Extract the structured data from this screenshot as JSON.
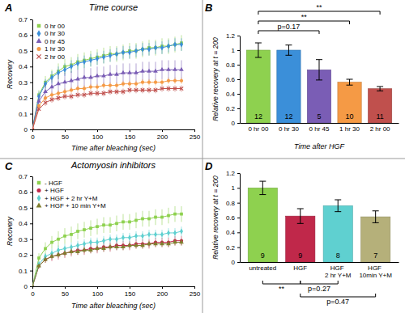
{
  "chart_data": [
    {
      "panel_label": "A",
      "type": "line",
      "title": "Time course",
      "xlabel": "Time after bleaching (sec)",
      "ylabel": "Recovery",
      "x": [
        0,
        10,
        20,
        30,
        40,
        50,
        60,
        70,
        80,
        90,
        100,
        110,
        120,
        130,
        140,
        150,
        160,
        170,
        180,
        190,
        200,
        210,
        220,
        230
      ],
      "xlim": [
        0,
        250
      ],
      "xticks": [
        0,
        50,
        100,
        150,
        200,
        250
      ],
      "ylim": [
        0,
        0.7
      ],
      "yticks": [
        0,
        0.1,
        0.2,
        0.3,
        0.4,
        0.5,
        0.6,
        0.7
      ],
      "legend": "upper left",
      "series": [
        {
          "name": "0 hr 00",
          "color": "#8ed14f",
          "marker": "square",
          "values": [
            0,
            0.22,
            0.3,
            0.34,
            0.37,
            0.4,
            0.41,
            0.43,
            0.44,
            0.45,
            0.46,
            0.47,
            0.48,
            0.48,
            0.49,
            0.5,
            0.5,
            0.51,
            0.52,
            0.52,
            0.53,
            0.53,
            0.54,
            0.55
          ],
          "errors": [
            0,
            0.03,
            0.04,
            0.04,
            0.05,
            0.05,
            0.05,
            0.05,
            0.05,
            0.05,
            0.05,
            0.05,
            0.05,
            0.05,
            0.05,
            0.05,
            0.05,
            0.05,
            0.05,
            0.05,
            0.05,
            0.05,
            0.05,
            0.05
          ]
        },
        {
          "name": "0 hr 30",
          "color": "#3b8fd9",
          "marker": "diamond",
          "values": [
            0,
            0.21,
            0.29,
            0.33,
            0.36,
            0.38,
            0.4,
            0.42,
            0.43,
            0.44,
            0.45,
            0.46,
            0.47,
            0.48,
            0.49,
            0.49,
            0.5,
            0.51,
            0.51,
            0.52,
            0.52,
            0.53,
            0.54,
            0.54
          ],
          "errors": [
            0,
            0.03,
            0.03,
            0.04,
            0.04,
            0.04,
            0.04,
            0.04,
            0.04,
            0.04,
            0.04,
            0.04,
            0.04,
            0.04,
            0.04,
            0.04,
            0.04,
            0.04,
            0.04,
            0.04,
            0.04,
            0.04,
            0.04,
            0.04
          ]
        },
        {
          "name": "0 hr 45",
          "color": "#7a5db5",
          "marker": "triangle",
          "values": [
            0,
            0.18,
            0.24,
            0.27,
            0.29,
            0.3,
            0.31,
            0.32,
            0.33,
            0.33,
            0.34,
            0.34,
            0.35,
            0.35,
            0.36,
            0.36,
            0.36,
            0.37,
            0.37,
            0.37,
            0.38,
            0.38,
            0.38,
            0.38
          ],
          "errors": [
            0,
            0.04,
            0.05,
            0.05,
            0.06,
            0.06,
            0.06,
            0.06,
            0.06,
            0.06,
            0.06,
            0.06,
            0.06,
            0.06,
            0.06,
            0.06,
            0.06,
            0.06,
            0.06,
            0.06,
            0.06,
            0.06,
            0.06,
            0.06
          ]
        },
        {
          "name": "1 hr 30",
          "color": "#f59a45",
          "marker": "circle",
          "values": [
            0,
            0.15,
            0.2,
            0.22,
            0.23,
            0.24,
            0.25,
            0.26,
            0.26,
            0.27,
            0.27,
            0.28,
            0.28,
            0.28,
            0.29,
            0.29,
            0.29,
            0.3,
            0.3,
            0.3,
            0.3,
            0.31,
            0.31,
            0.31
          ],
          "errors": [
            0,
            0.01,
            0.02,
            0.02,
            0.02,
            0.02,
            0.02,
            0.02,
            0.02,
            0.02,
            0.02,
            0.02,
            0.02,
            0.02,
            0.02,
            0.02,
            0.02,
            0.02,
            0.02,
            0.02,
            0.02,
            0.02,
            0.02,
            0.02
          ]
        },
        {
          "name": "2 hr 00",
          "color": "#c0504d",
          "marker": "x",
          "values": [
            0,
            0.13,
            0.17,
            0.19,
            0.2,
            0.21,
            0.21,
            0.22,
            0.22,
            0.23,
            0.23,
            0.23,
            0.24,
            0.24,
            0.24,
            0.25,
            0.25,
            0.25,
            0.25,
            0.25,
            0.26,
            0.26,
            0.26,
            0.26
          ],
          "errors": [
            0,
            0.01,
            0.02,
            0.02,
            0.02,
            0.02,
            0.02,
            0.02,
            0.02,
            0.02,
            0.02,
            0.02,
            0.02,
            0.02,
            0.02,
            0.02,
            0.02,
            0.02,
            0.02,
            0.02,
            0.02,
            0.02,
            0.02,
            0.02
          ]
        }
      ]
    },
    {
      "panel_label": "B",
      "type": "bar",
      "xlabel": "Time after HGF",
      "ylabel": "Relative recovery at t = 200",
      "categories": [
        "0 hr 00",
        "0 hr 30",
        "0 hr 45",
        "1 hr 30",
        "2 hr 00"
      ],
      "values": [
        1.0,
        1.0,
        0.73,
        0.56,
        0.47
      ],
      "errors": [
        0.1,
        0.07,
        0.14,
        0.04,
        0.03
      ],
      "n": [
        12,
        12,
        5,
        10,
        11
      ],
      "colors": [
        "#8ed14f",
        "#3b8fd9",
        "#7a5db5",
        "#f59a45",
        "#c0504d"
      ],
      "ylim": [
        0,
        1.2
      ],
      "yticks": [
        0,
        0.2,
        0.4,
        0.6,
        0.8,
        1,
        1.2
      ],
      "annotations": [
        {
          "text": "p=0.17",
          "from": 0,
          "to": 2
        },
        {
          "text": "**",
          "from": 0,
          "to": 3
        },
        {
          "text": "**",
          "from": 0,
          "to": 4
        }
      ]
    },
    {
      "panel_label": "C",
      "type": "line",
      "title": "Actomyosin inhibitors",
      "xlabel": "Time after bleaching (sec)",
      "ylabel": "Recovery",
      "x": [
        0,
        10,
        20,
        30,
        40,
        50,
        60,
        70,
        80,
        90,
        100,
        110,
        120,
        130,
        140,
        150,
        160,
        170,
        180,
        190,
        200,
        210,
        220,
        230
      ],
      "xlim": [
        0,
        250
      ],
      "xticks": [
        0,
        50,
        100,
        150,
        200,
        250
      ],
      "ylim": [
        0,
        0.7
      ],
      "yticks": [
        0,
        0.1,
        0.2,
        0.3,
        0.4,
        0.5,
        0.6,
        0.7
      ],
      "legend": "upper left",
      "series": [
        {
          "name": "- HGF",
          "color": "#8ed14f",
          "marker": "square",
          "values": [
            0,
            0.18,
            0.24,
            0.28,
            0.3,
            0.32,
            0.33,
            0.35,
            0.36,
            0.37,
            0.38,
            0.39,
            0.39,
            0.4,
            0.41,
            0.41,
            0.42,
            0.43,
            0.43,
            0.44,
            0.44,
            0.45,
            0.46,
            0.46
          ],
          "errors": [
            0,
            0.03,
            0.04,
            0.04,
            0.05,
            0.05,
            0.05,
            0.05,
            0.05,
            0.05,
            0.05,
            0.05,
            0.05,
            0.05,
            0.05,
            0.05,
            0.05,
            0.05,
            0.05,
            0.05,
            0.05,
            0.05,
            0.05,
            0.05
          ]
        },
        {
          "name": "+ HGF",
          "color": "#c0284a",
          "marker": "circle",
          "values": [
            0,
            0.13,
            0.17,
            0.19,
            0.2,
            0.21,
            0.22,
            0.23,
            0.23,
            0.24,
            0.24,
            0.25,
            0.25,
            0.26,
            0.26,
            0.26,
            0.27,
            0.27,
            0.27,
            0.28,
            0.28,
            0.28,
            0.29,
            0.29
          ],
          "errors": [
            0,
            0.02,
            0.02,
            0.03,
            0.03,
            0.03,
            0.03,
            0.03,
            0.03,
            0.03,
            0.03,
            0.03,
            0.03,
            0.03,
            0.03,
            0.03,
            0.03,
            0.03,
            0.03,
            0.03,
            0.03,
            0.03,
            0.03,
            0.03
          ]
        },
        {
          "name": "+ HGF + 2 hr Y+M",
          "color": "#5fd0d0",
          "marker": "diamond",
          "values": [
            0,
            0.14,
            0.19,
            0.21,
            0.23,
            0.24,
            0.25,
            0.26,
            0.27,
            0.28,
            0.28,
            0.29,
            0.3,
            0.3,
            0.31,
            0.31,
            0.32,
            0.32,
            0.33,
            0.33,
            0.33,
            0.34,
            0.34,
            0.35
          ],
          "errors": [
            0,
            0.02,
            0.02,
            0.03,
            0.03,
            0.03,
            0.03,
            0.03,
            0.03,
            0.03,
            0.03,
            0.03,
            0.03,
            0.03,
            0.03,
            0.03,
            0.03,
            0.03,
            0.03,
            0.03,
            0.03,
            0.03,
            0.03,
            0.03
          ]
        },
        {
          "name": "+ HGF + 10 min Y+M",
          "color": "#7f7f2f",
          "marker": "triangle",
          "values": [
            0,
            0.13,
            0.17,
            0.19,
            0.2,
            0.21,
            0.22,
            0.22,
            0.23,
            0.23,
            0.24,
            0.24,
            0.25,
            0.25,
            0.25,
            0.26,
            0.26,
            0.26,
            0.27,
            0.27,
            0.27,
            0.27,
            0.28,
            0.28
          ],
          "errors": [
            0,
            0.01,
            0.02,
            0.02,
            0.02,
            0.02,
            0.02,
            0.02,
            0.02,
            0.02,
            0.02,
            0.02,
            0.02,
            0.02,
            0.02,
            0.02,
            0.02,
            0.02,
            0.02,
            0.02,
            0.02,
            0.02,
            0.02,
            0.02
          ]
        }
      ]
    },
    {
      "panel_label": "D",
      "type": "bar",
      "ylabel": "Relative recovery at t = 200",
      "categories": [
        "untreated",
        "HGF",
        "HGF 2 hr Y+M",
        "HGF 10min Y+M"
      ],
      "values": [
        1.0,
        0.62,
        0.76,
        0.61
      ],
      "errors": [
        0.09,
        0.1,
        0.08,
        0.08
      ],
      "n": [
        9,
        9,
        8,
        7
      ],
      "colors": [
        "#8ed14f",
        "#c0284a",
        "#5fd0d0",
        "#b5b07a"
      ],
      "ylim": [
        0,
        1.2
      ],
      "yticks": [
        0,
        0.2,
        0.4,
        0.6,
        0.8,
        1,
        1.2
      ],
      "annotations_below": [
        {
          "text": "**",
          "from": 0,
          "to": 1
        },
        {
          "text": "p=0.27",
          "from": 1,
          "to": 2
        },
        {
          "text": "p=0.47",
          "from": 1,
          "to": 3
        }
      ]
    }
  ]
}
